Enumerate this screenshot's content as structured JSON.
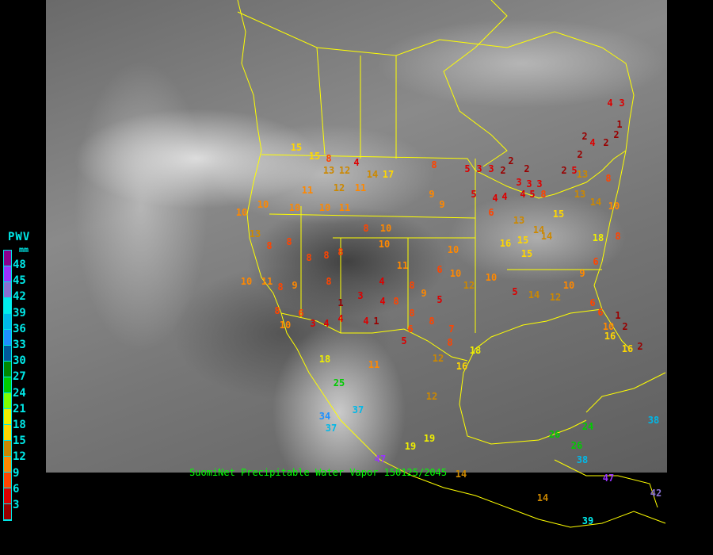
{
  "caption": "SuomiNet Precipitable Water Vapor 150125/2045",
  "legend": {
    "title": "PWV",
    "unit": "mm",
    "labels": [
      "48",
      "45",
      "42",
      "39",
      "36",
      "33",
      "30",
      "27",
      "24",
      "21",
      "18",
      "15",
      "12",
      "9",
      "6",
      "3"
    ],
    "colors": [
      "#8b0090",
      "#9933ff",
      "#8870d0",
      "#00ecec",
      "#00b8e8",
      "#1e90ff",
      "#005a9a",
      "#008800",
      "#00cc00",
      "#80ff00",
      "#eeee00",
      "#ffd700",
      "#cc8800",
      "#ff8800",
      "#ff4400",
      "#dd0000",
      "#990000"
    ]
  },
  "boundary_color": "#ffff00",
  "stations": [
    4,
    3,
    1,
    2,
    4,
    2,
    2,
    2,
    2,
    5,
    5,
    3,
    3,
    2,
    2,
    2,
    3,
    3,
    3,
    5,
    4,
    4,
    4,
    5,
    8,
    6,
    8,
    9,
    9,
    14,
    17,
    4,
    8,
    15,
    15,
    13,
    12,
    11,
    12,
    11,
    10,
    11,
    10,
    10,
    10,
    13,
    8,
    8,
    8,
    8,
    8,
    8,
    10,
    10,
    11,
    10,
    6,
    10,
    4,
    3,
    4,
    8,
    8,
    1,
    1,
    4,
    4,
    4,
    3,
    10,
    6,
    8,
    10,
    11,
    8,
    9,
    8,
    9,
    5,
    8,
    8,
    6,
    7,
    5,
    8,
    12,
    10,
    5,
    14,
    12,
    10,
    9,
    6,
    6,
    6,
    1,
    10,
    2,
    2,
    16,
    16,
    18,
    8,
    14,
    10,
    15,
    14,
    13,
    15,
    16,
    14,
    15,
    13,
    13,
    8,
    18,
    25,
    34,
    37,
    37,
    11,
    12,
    19,
    19,
    12,
    16,
    18,
    47,
    14,
    14,
    26,
    26,
    24,
    38,
    47,
    42,
    39,
    38
  ]
}
